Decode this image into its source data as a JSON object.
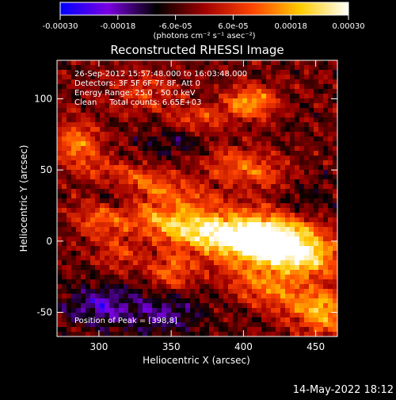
{
  "colorbar": {
    "tick_labels": [
      "-0.00030",
      "-0.00018",
      "-6.0e-05",
      "6.0e-05",
      "0.00018",
      "0.00030"
    ],
    "unit_label": "(photons cm⁻² s⁻¹ asec⁻²)",
    "range": [
      -0.0003,
      0.0003
    ],
    "stops": [
      "#0000ff",
      "#7a00e0",
      "#000000",
      "#a00000",
      "#ff4400",
      "#ffcc00",
      "#ffffff"
    ]
  },
  "header": {
    "time_range": "26-Sep-2012 15:57:48.000 to 16:03:48.000",
    "detectors": "Detectors: 3F 5F 6F 7F 8F, Att 0",
    "energy": "Energy Range: 25.0 - 50.0 keV",
    "algorithm": "Clean     Total counts: 6.65E+03"
  },
  "peak_label": "Position of Peak = [398,8]",
  "footer_date": "14-May-2022 18:12",
  "chart_data": {
    "type": "heatmap",
    "title": "Reconstructed RHESSI Image",
    "xlabel": "Heliocentric X (arcsec)",
    "ylabel": "Heliocentric Y (arcsec)",
    "xlim": [
      271,
      465
    ],
    "ylim": [
      -67,
      127
    ],
    "xticks": [
      300,
      350,
      400,
      450
    ],
    "yticks": [
      -50,
      0,
      50,
      100
    ],
    "grid": false,
    "peak_position": [
      398,
      8
    ],
    "features": [
      {
        "x": 380,
        "y": 5,
        "sx": 45,
        "sy": 10,
        "rot": -12,
        "amp": 1.0
      },
      {
        "x": 420,
        "y": 5,
        "sx": 22,
        "sy": 12,
        "rot": 0,
        "amp": 0.85
      },
      {
        "x": 440,
        "y": -12,
        "sx": 18,
        "sy": 10,
        "rot": 0,
        "amp": 0.55
      },
      {
        "x": 335,
        "y": 40,
        "sx": 35,
        "sy": 8,
        "rot": -15,
        "amp": 0.5
      },
      {
        "x": 400,
        "y": 52,
        "sx": 25,
        "sy": 10,
        "rot": -20,
        "amp": 0.5
      },
      {
        "x": 405,
        "y": 98,
        "sx": 12,
        "sy": 8,
        "rot": 0,
        "amp": 0.7
      },
      {
        "x": 285,
        "y": 70,
        "sx": 12,
        "sy": 10,
        "rot": 0,
        "amp": 0.55
      },
      {
        "x": 370,
        "y": 85,
        "sx": 15,
        "sy": 8,
        "rot": 0,
        "amp": 0.4
      },
      {
        "x": 350,
        "y": -22,
        "sx": 12,
        "sy": 10,
        "rot": 0,
        "amp": 0.5
      },
      {
        "x": 420,
        "y": -35,
        "sx": 25,
        "sy": 10,
        "rot": -20,
        "amp": 0.55
      },
      {
        "x": 455,
        "y": -50,
        "sx": 12,
        "sy": 12,
        "rot": 0,
        "amp": 0.6
      },
      {
        "x": 300,
        "y": 15,
        "sx": 12,
        "sy": 10,
        "rot": 0,
        "amp": 0.4
      },
      {
        "x": 315,
        "y": -10,
        "sx": 10,
        "sy": 8,
        "rot": 0,
        "amp": 0.35
      },
      {
        "x": 330,
        "y": 105,
        "sx": 15,
        "sy": 10,
        "rot": 0,
        "amp": 0.35
      },
      {
        "x": 300,
        "y": -45,
        "sx": 15,
        "sy": 10,
        "rot": 0,
        "amp": -0.5
      },
      {
        "x": 345,
        "y": -50,
        "sx": 20,
        "sy": 12,
        "rot": 0,
        "amp": -0.4
      },
      {
        "x": 360,
        "y": 70,
        "sx": 20,
        "sy": 8,
        "rot": 0,
        "amp": -0.35
      },
      {
        "x": 310,
        "y": 30,
        "sx": 12,
        "sy": 10,
        "rot": 0,
        "amp": -0.3
      },
      {
        "x": 440,
        "y": 30,
        "sx": 15,
        "sy": 10,
        "rot": 0,
        "amp": -0.3
      }
    ]
  }
}
